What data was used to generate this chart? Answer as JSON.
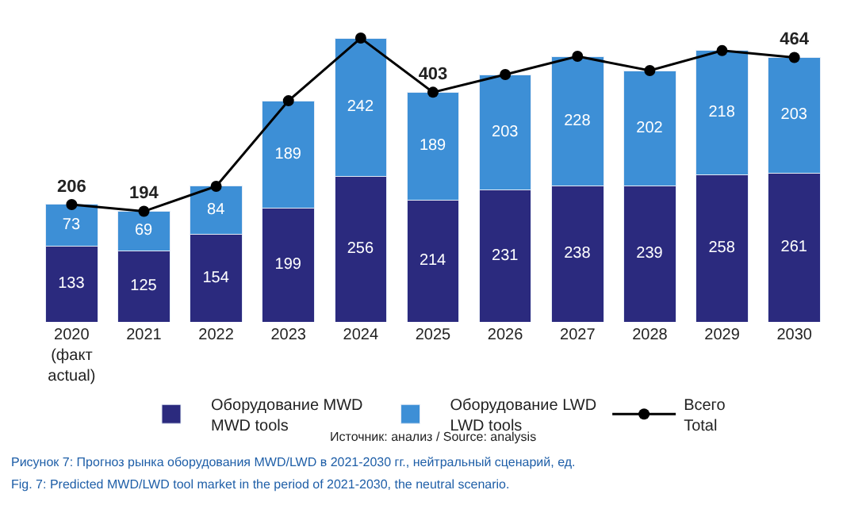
{
  "chart_data": {
    "type": "bar",
    "stacked": true,
    "data_labels": true,
    "legend": "bottom",
    "categories": [
      "2020\n(факт\nactual)",
      "2021",
      "2022",
      "2023",
      "2024",
      "2025",
      "2026",
      "2027",
      "2028",
      "2029",
      "2030"
    ],
    "series": [
      {
        "name": "Оборудование MWD\nMWD tools",
        "color": "#2b2a7e",
        "values": [
          133,
          125,
          154,
          199,
          256,
          214,
          231,
          238,
          239,
          258,
          261
        ]
      },
      {
        "name": "Оборудование LWD\nLWD tools",
        "color": "#3d8fd6",
        "values": [
          73,
          69,
          84,
          189,
          242,
          189,
          203,
          228,
          202,
          218,
          203
        ]
      },
      {
        "name": "Всего\nTotal",
        "type": "line",
        "marker": "circle",
        "color": "#000000",
        "values": [
          206,
          194,
          238,
          388,
          498,
          403,
          434,
          466,
          441,
          476,
          464
        ],
        "value_labels": [
          "206",
          "194",
          null,
          null,
          null,
          "403",
          null,
          null,
          null,
          null,
          "464"
        ]
      }
    ],
    "annotations": [
      "Источник: анализ / Source: analysis",
      "Рисунок 7: Прогноз рынка оборудования MWD/LWD в 2021-2030 гг., нейтральный сценарий, ед.",
      "Fig. 7: Predicted MWD/LWD tool market in the period of 2021-2030, the neutral scenario."
    ]
  }
}
